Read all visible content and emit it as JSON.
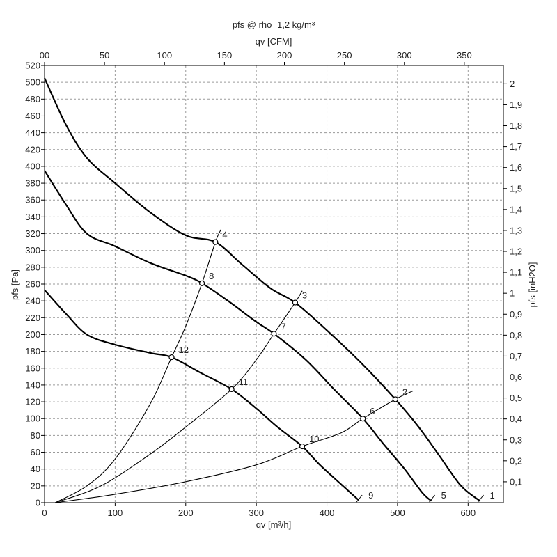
{
  "chart_data": {
    "type": "line",
    "title": "pfs @ rho=1,2 kg/m³",
    "xlabel": "qv [m³/h]",
    "x2label": "qv [CFM]",
    "ylabel": "pfs [Pa]",
    "y2label": "pfs [inH2O]",
    "xlim": [
      0,
      650
    ],
    "ylim": [
      0,
      520
    ],
    "x_ticks": [
      0,
      100,
      200,
      300,
      400,
      500,
      600
    ],
    "x_tick_labels": [
      "0",
      "100",
      "200",
      "300",
      "400",
      "500",
      "600"
    ],
    "x2_ticks": [
      0,
      50,
      100,
      150,
      200,
      250,
      300,
      350
    ],
    "x2_tick_labels": [
      "00",
      "50",
      "100",
      "150",
      "200",
      "250",
      "300",
      "350"
    ],
    "y_ticks": [
      0,
      20,
      40,
      60,
      80,
      100,
      120,
      140,
      160,
      180,
      200,
      220,
      240,
      260,
      280,
      300,
      320,
      340,
      360,
      380,
      400,
      420,
      440,
      460,
      480,
      500,
      520
    ],
    "y_tick_labels": [
      "0",
      "20",
      "40",
      "60",
      "80",
      "100",
      "120",
      "140",
      "160",
      "180",
      "200",
      "220",
      "240",
      "260",
      "280",
      "300",
      "320",
      "340",
      "360",
      "380",
      "400",
      "420",
      "440",
      "460",
      "480",
      "500",
      "520"
    ],
    "y2_ticks": [
      0.1,
      0.2,
      0.3,
      0.4,
      0.5,
      0.6,
      0.7,
      0.8,
      0.9,
      1.0,
      1.1,
      1.2,
      1.3,
      1.4,
      1.5,
      1.6,
      1.7,
      1.8,
      1.9,
      2.0
    ],
    "y2_tick_labels": [
      "0,1",
      "0,2",
      "0,3",
      "0,4",
      "0,5",
      "0,6",
      "0,7",
      "0,8",
      "0,9",
      "1",
      "1,1",
      "1,2",
      "1,3",
      "1,4",
      "1,5",
      "1,6",
      "1,7",
      "1,8",
      "1,9",
      "2"
    ],
    "grid": true,
    "fan_curves": [
      {
        "name": "1",
        "points": [
          [
            0,
            505
          ],
          [
            30,
            450
          ],
          [
            60,
            410
          ],
          [
            100,
            380
          ],
          [
            150,
            345
          ],
          [
            200,
            318
          ],
          [
            242,
            310
          ],
          [
            280,
            283
          ],
          [
            320,
            255
          ],
          [
            355,
            238
          ],
          [
            400,
            205
          ],
          [
            450,
            165
          ],
          [
            497,
            123
          ],
          [
            530,
            90
          ],
          [
            560,
            55
          ],
          [
            590,
            20
          ],
          [
            617,
            2
          ]
        ]
      },
      {
        "name": "5",
        "points": [
          [
            0,
            395
          ],
          [
            30,
            355
          ],
          [
            60,
            320
          ],
          [
            100,
            305
          ],
          [
            150,
            285
          ],
          [
            200,
            270
          ],
          [
            223,
            261
          ],
          [
            260,
            240
          ],
          [
            300,
            215
          ],
          [
            325,
            201
          ],
          [
            370,
            170
          ],
          [
            410,
            135
          ],
          [
            451,
            100
          ],
          [
            480,
            70
          ],
          [
            510,
            40
          ],
          [
            535,
            12
          ],
          [
            548,
            2
          ]
        ]
      },
      {
        "name": "9",
        "points": [
          [
            0,
            253
          ],
          [
            30,
            225
          ],
          [
            60,
            200
          ],
          [
            100,
            188
          ],
          [
            150,
            178
          ],
          [
            180,
            173
          ],
          [
            220,
            155
          ],
          [
            265,
            135
          ],
          [
            300,
            112
          ],
          [
            330,
            90
          ],
          [
            365,
            67
          ],
          [
            390,
            45
          ],
          [
            420,
            22
          ],
          [
            445,
            3
          ]
        ]
      }
    ],
    "system_curves": [
      {
        "name": "4",
        "points": [
          [
            15,
            0
          ],
          [
            60,
            20
          ],
          [
            100,
            52
          ],
          [
            150,
            118
          ],
          [
            180,
            173
          ],
          [
            200,
            210
          ],
          [
            223,
            261
          ],
          [
            242,
            310
          ],
          [
            250,
            325
          ]
        ]
      },
      {
        "name": "3",
        "points": [
          [
            15,
            0
          ],
          [
            80,
            20
          ],
          [
            150,
            58
          ],
          [
            200,
            90
          ],
          [
            265,
            135
          ],
          [
            300,
            170
          ],
          [
            325,
            201
          ],
          [
            355,
            238
          ],
          [
            365,
            252
          ]
        ]
      },
      {
        "name": "2",
        "points": [
          [
            15,
            0
          ],
          [
            100,
            10
          ],
          [
            200,
            25
          ],
          [
            300,
            45
          ],
          [
            365,
            67
          ],
          [
            420,
            83
          ],
          [
            451,
            100
          ],
          [
            497,
            123
          ],
          [
            522,
            133
          ]
        ]
      }
    ],
    "operating_points": [
      {
        "label": "4",
        "x": 242,
        "y": 310
      },
      {
        "label": "8",
        "x": 223,
        "y": 261
      },
      {
        "label": "12",
        "x": 180,
        "y": 173
      },
      {
        "label": "3",
        "x": 355,
        "y": 238
      },
      {
        "label": "7",
        "x": 325,
        "y": 201
      },
      {
        "label": "11",
        "x": 265,
        "y": 135
      },
      {
        "label": "2",
        "x": 497,
        "y": 123
      },
      {
        "label": "6",
        "x": 451,
        "y": 100
      },
      {
        "label": "10",
        "x": 365,
        "y": 67
      }
    ],
    "end_labels": [
      {
        "label": "1",
        "x": 617
      },
      {
        "label": "5",
        "x": 548
      },
      {
        "label": "9",
        "x": 445
      }
    ]
  }
}
